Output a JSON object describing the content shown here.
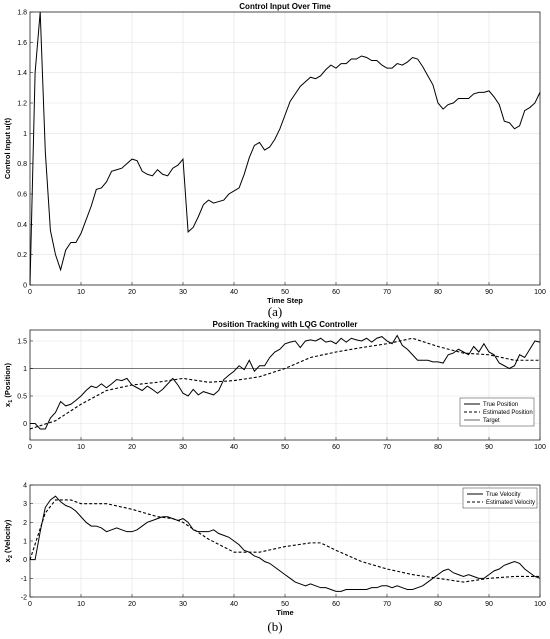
{
  "panel_labels": [
    "(a)",
    "(b)"
  ],
  "chart_data": [
    {
      "type": "line",
      "title": "Control Input Over Time",
      "xlabel": "Time Step",
      "ylabel": "Control Input u(t)",
      "xlim": [
        0,
        100
      ],
      "ylim": [
        0,
        1.8
      ],
      "xticks": [
        "0",
        "10",
        "20",
        "30",
        "40",
        "50",
        "60",
        "70",
        "80",
        "90",
        "100"
      ],
      "yticks": [
        "0",
        "0.2",
        "0.4",
        "0.6",
        "0.8",
        "1",
        "1.2",
        "1.4",
        "1.6",
        "1.8"
      ],
      "grid": true,
      "series": [
        {
          "style": "solid",
          "color": "#000000",
          "x": [
            0,
            1,
            2,
            3,
            4,
            5,
            6,
            7,
            8,
            9,
            10,
            11,
            12,
            13,
            14,
            15,
            16,
            17,
            18,
            19,
            20,
            21,
            22,
            23,
            24,
            25,
            26,
            27,
            28,
            29,
            30,
            31,
            32,
            33,
            34,
            35,
            36,
            37,
            38,
            39,
            40,
            41,
            42,
            43,
            44,
            45,
            46,
            47,
            48,
            49,
            50,
            51,
            52,
            53,
            54,
            55,
            56,
            57,
            58,
            59,
            60,
            61,
            62,
            63,
            64,
            65,
            66,
            67,
            68,
            69,
            70,
            71,
            72,
            73,
            74,
            75,
            76,
            77,
            78,
            79,
            80,
            81,
            82,
            83,
            84,
            85,
            86,
            87,
            88,
            89,
            90,
            91,
            92,
            93,
            94,
            95,
            96,
            97,
            98,
            99,
            100
          ],
          "y": [
            0,
            1.4,
            1.8,
            0.88,
            0.36,
            0.2,
            0.1,
            0.23,
            0.28,
            0.28,
            0.34,
            0.43,
            0.52,
            0.63,
            0.64,
            0.68,
            0.75,
            0.76,
            0.77,
            0.8,
            0.83,
            0.82,
            0.75,
            0.73,
            0.72,
            0.76,
            0.73,
            0.72,
            0.77,
            0.79,
            0.83,
            0.35,
            0.38,
            0.45,
            0.53,
            0.56,
            0.54,
            0.55,
            0.56,
            0.6,
            0.62,
            0.64,
            0.73,
            0.84,
            0.92,
            0.94,
            0.89,
            0.91,
            0.96,
            1.03,
            1.12,
            1.21,
            1.26,
            1.31,
            1.34,
            1.37,
            1.36,
            1.38,
            1.42,
            1.45,
            1.43,
            1.46,
            1.46,
            1.49,
            1.49,
            1.51,
            1.5,
            1.48,
            1.48,
            1.45,
            1.43,
            1.43,
            1.46,
            1.45,
            1.47,
            1.5,
            1.49,
            1.44,
            1.38,
            1.32,
            1.2,
            1.16,
            1.19,
            1.2,
            1.23,
            1.23,
            1.23,
            1.26,
            1.27,
            1.27,
            1.28,
            1.24,
            1.19,
            1.08,
            1.07,
            1.03,
            1.05,
            1.15,
            1.17,
            1.2,
            1.27
          ]
        }
      ]
    },
    {
      "type": "line",
      "title": "Position Tracking with LQG Controller",
      "xlabel": "",
      "ylabel": "x1 (Position)",
      "ylabel_main": "x",
      "ylabel_sub": "1",
      "ylabel_rest": " (Position)",
      "xlim": [
        0,
        100
      ],
      "ylim": [
        -0.3,
        1.7
      ],
      "xticks": [
        "0",
        "10",
        "20",
        "30",
        "40",
        "50",
        "60",
        "70",
        "80",
        "90",
        "100"
      ],
      "yticks": [
        "0",
        "0.5",
        "1",
        "1.5"
      ],
      "ytick_values": [
        0,
        0.5,
        1,
        1.5
      ],
      "grid": true,
      "legend_position": "right",
      "series": [
        {
          "name": "True Position",
          "style": "solid",
          "x": [
            0,
            1,
            2,
            3,
            4,
            5,
            6,
            7,
            8,
            9,
            10,
            11,
            12,
            13,
            14,
            15,
            16,
            17,
            18,
            19,
            20,
            21,
            22,
            23,
            24,
            25,
            26,
            27,
            28,
            29,
            30,
            31,
            32,
            33,
            34,
            35,
            36,
            37,
            38,
            39,
            40,
            41,
            42,
            43,
            44,
            45,
            46,
            47,
            48,
            49,
            50,
            51,
            52,
            53,
            54,
            55,
            56,
            57,
            58,
            59,
            60,
            61,
            62,
            63,
            64,
            65,
            66,
            67,
            68,
            69,
            70,
            71,
            72,
            73,
            74,
            75,
            76,
            77,
            78,
            79,
            80,
            81,
            82,
            83,
            84,
            85,
            86,
            87,
            88,
            89,
            90,
            91,
            92,
            93,
            94,
            95,
            96,
            97,
            98,
            99,
            100
          ],
          "y": [
            0,
            0,
            -0.1,
            -0.1,
            0.1,
            0.2,
            0.4,
            0.32,
            0.35,
            0.42,
            0.5,
            0.6,
            0.68,
            0.65,
            0.72,
            0.65,
            0.72,
            0.8,
            0.78,
            0.82,
            0.7,
            0.65,
            0.6,
            0.68,
            0.62,
            0.55,
            0.62,
            0.72,
            0.82,
            0.7,
            0.55,
            0.5,
            0.62,
            0.52,
            0.58,
            0.55,
            0.52,
            0.6,
            0.8,
            0.88,
            0.95,
            1.05,
            0.98,
            1.15,
            0.95,
            1.05,
            1.05,
            1.2,
            1.3,
            1.35,
            1.45,
            1.48,
            1.5,
            1.38,
            1.5,
            1.52,
            1.5,
            1.55,
            1.48,
            1.5,
            1.45,
            1.55,
            1.48,
            1.55,
            1.52,
            1.5,
            1.55,
            1.48,
            1.55,
            1.58,
            1.5,
            1.45,
            1.6,
            1.42,
            1.35,
            1.25,
            1.15,
            1.15,
            1.15,
            1.12,
            1.12,
            1.1,
            1.25,
            1.28,
            1.35,
            1.3,
            1.25,
            1.4,
            1.3,
            1.45,
            1.3,
            1.25,
            1.1,
            1.05,
            1.0,
            1.05,
            1.25,
            1.2,
            1.35,
            1.5,
            1.48
          ]
        },
        {
          "name": "Estimated Position",
          "style": "dashed",
          "x": [
            0,
            5,
            10,
            15,
            20,
            25,
            30,
            35,
            40,
            45,
            50,
            55,
            60,
            65,
            70,
            75,
            80,
            85,
            90,
            95,
            100
          ],
          "y": [
            -0.1,
            0.05,
            0.35,
            0.6,
            0.7,
            0.75,
            0.82,
            0.75,
            0.78,
            0.85,
            1.0,
            1.2,
            1.3,
            1.38,
            1.45,
            1.55,
            1.4,
            1.28,
            1.25,
            1.15,
            1.15
          ]
        },
        {
          "name": "Target",
          "style": "solid-thin",
          "x": [
            0,
            100
          ],
          "y": [
            1,
            1
          ]
        }
      ]
    },
    {
      "type": "line",
      "title": "",
      "xlabel": "Time",
      "ylabel": "x2 (Velocity)",
      "ylabel_main": "x",
      "ylabel_sub": "2",
      "ylabel_rest": " (Velocity)",
      "xlim": [
        0,
        100
      ],
      "ylim": [
        -2,
        4
      ],
      "xticks": [
        "0",
        "10",
        "20",
        "30",
        "40",
        "50",
        "60",
        "70",
        "80",
        "90",
        "100"
      ],
      "yticks": [
        "-2",
        "-1",
        "0",
        "1",
        "2",
        "3",
        "4"
      ],
      "ytick_values": [
        -2,
        -1,
        0,
        1,
        2,
        3,
        4
      ],
      "grid": true,
      "legend_position": "top-right",
      "series": [
        {
          "name": "True Velocity",
          "style": "solid",
          "x": [
            0,
            1,
            2,
            3,
            4,
            5,
            6,
            7,
            8,
            9,
            10,
            11,
            12,
            13,
            14,
            15,
            16,
            17,
            18,
            19,
            20,
            21,
            22,
            23,
            24,
            25,
            26,
            27,
            28,
            29,
            30,
            31,
            32,
            33,
            34,
            35,
            36,
            37,
            38,
            39,
            40,
            41,
            42,
            43,
            44,
            45,
            46,
            47,
            48,
            49,
            50,
            51,
            52,
            53,
            54,
            55,
            56,
            57,
            58,
            59,
            60,
            61,
            62,
            63,
            64,
            65,
            66,
            67,
            68,
            69,
            70,
            71,
            72,
            73,
            74,
            75,
            76,
            77,
            78,
            79,
            80,
            81,
            82,
            83,
            84,
            85,
            86,
            87,
            88,
            89,
            90,
            91,
            92,
            93,
            94,
            95,
            96,
            97,
            98,
            99,
            100
          ],
          "y": [
            0,
            0,
            1.5,
            2.8,
            3.2,
            3.4,
            3.1,
            2.9,
            2.8,
            2.6,
            2.3,
            2.0,
            1.8,
            1.8,
            1.7,
            1.5,
            1.6,
            1.7,
            1.6,
            1.5,
            1.5,
            1.6,
            1.8,
            2.0,
            2.1,
            2.2,
            2.3,
            2.3,
            2.2,
            2.1,
            2.2,
            2.0,
            1.6,
            1.5,
            1.5,
            1.5,
            1.6,
            1.4,
            1.3,
            1.2,
            1.0,
            0.8,
            0.5,
            0.4,
            0.2,
            0.1,
            -0.1,
            -0.2,
            -0.4,
            -0.6,
            -0.8,
            -1.0,
            -1.2,
            -1.3,
            -1.4,
            -1.3,
            -1.4,
            -1.5,
            -1.5,
            -1.6,
            -1.7,
            -1.7,
            -1.6,
            -1.6,
            -1.6,
            -1.6,
            -1.6,
            -1.5,
            -1.5,
            -1.4,
            -1.4,
            -1.5,
            -1.4,
            -1.5,
            -1.6,
            -1.6,
            -1.5,
            -1.4,
            -1.2,
            -1.0,
            -0.8,
            -0.6,
            -0.5,
            -0.7,
            -0.8,
            -0.9,
            -0.8,
            -0.9,
            -1.0,
            -1.0,
            -0.8,
            -0.6,
            -0.5,
            -0.3,
            -0.2,
            -0.1,
            -0.2,
            -0.5,
            -0.7,
            -0.9,
            -1.0
          ]
        },
        {
          "name": "Estimated Velocity",
          "style": "dashed",
          "x": [
            0,
            3,
            5,
            8,
            10,
            15,
            20,
            25,
            28,
            30,
            35,
            40,
            45,
            50,
            55,
            57,
            60,
            65,
            70,
            75,
            80,
            85,
            90,
            95,
            100
          ],
          "y": [
            0,
            2.5,
            3.2,
            3.2,
            3.0,
            3.0,
            2.7,
            2.3,
            2.2,
            2.0,
            1.1,
            0.4,
            0.4,
            0.7,
            0.9,
            0.9,
            0.5,
            -0.1,
            -0.5,
            -0.8,
            -1.0,
            -1.2,
            -1.0,
            -0.9,
            -0.9
          ]
        }
      ]
    }
  ]
}
